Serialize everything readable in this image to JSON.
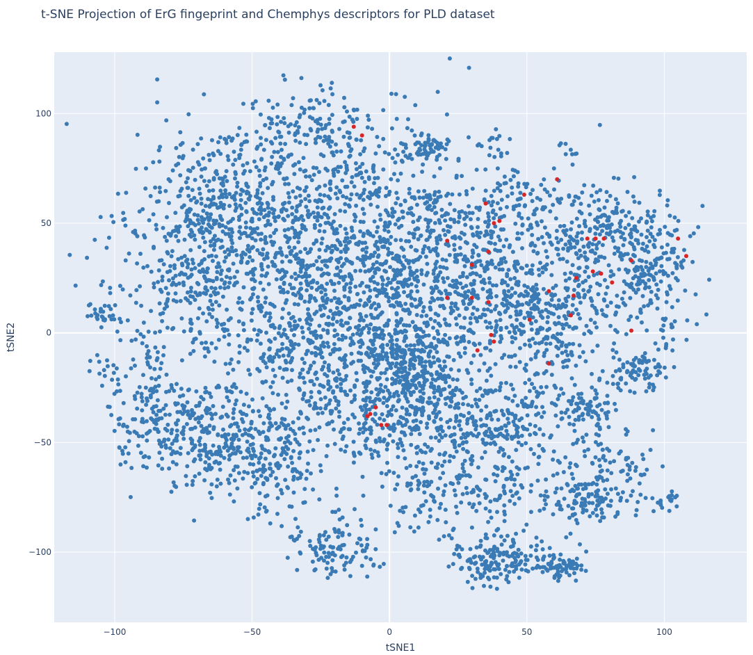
{
  "chart_data": {
    "type": "scatter",
    "title": "t-SNE Projection of ErG fingeprint and Chemphys descriptors for PLD dataset",
    "xlabel": "tSNE1",
    "ylabel": "tSNE2",
    "xlim": [
      -122,
      130
    ],
    "ylim": [
      -132,
      128
    ],
    "x_ticks": [
      -100,
      -50,
      0,
      50,
      100
    ],
    "y_ticks": [
      -100,
      -50,
      0,
      50,
      100
    ],
    "x_tick_labels": [
      "−100",
      "−50",
      "0",
      "50",
      "100"
    ],
    "y_tick_labels": [
      "−100",
      "−50",
      "0",
      "50",
      "100"
    ],
    "grid": true,
    "legend": "none",
    "colors": {
      "plot_bg": "#e5ecf6",
      "grid": "#ffffff",
      "series_blue": "#3a7ab5",
      "series_red": "#d62728"
    },
    "series": [
      {
        "color": "#3a7ab5",
        "clusters": [
          {
            "cx": -38,
            "cy": 40,
            "sx": 27,
            "sy": 29,
            "n": 900
          },
          {
            "cx": -8,
            "cy": 35,
            "sx": 17,
            "sy": 35,
            "n": 450
          },
          {
            "cx": -28,
            "cy": 92,
            "sx": 14,
            "sy": 10,
            "n": 120
          },
          {
            "cx": -62,
            "cy": 57,
            "sx": 14,
            "sy": 16,
            "n": 200
          },
          {
            "cx": -68,
            "cy": 22,
            "sx": 12,
            "sy": 16,
            "n": 160
          },
          {
            "cx": 3,
            "cy": 25,
            "sx": 10,
            "sy": 16,
            "n": 200
          },
          {
            "cx": 14,
            "cy": 85,
            "sx": 4,
            "sy": 3,
            "n": 60
          },
          {
            "cx": 14,
            "cy": 60,
            "sx": 4,
            "sy": 3,
            "n": 25
          },
          {
            "cx": 8,
            "cy": -14,
            "sx": 10,
            "sy": 9,
            "n": 280
          },
          {
            "cx": -73,
            "cy": -45,
            "sx": 13,
            "sy": 12,
            "n": 250
          },
          {
            "cx": -90,
            "cy": -25,
            "sx": 6,
            "sy": 14,
            "n": 80
          },
          {
            "cx": -50,
            "cy": -48,
            "sx": 12,
            "sy": 14,
            "n": 220
          },
          {
            "cx": -42,
            "cy": -65,
            "sx": 10,
            "sy": 10,
            "n": 80
          },
          {
            "cx": -22,
            "cy": -10,
            "sx": 11,
            "sy": 15,
            "n": 150
          },
          {
            "cx": -40,
            "cy": -5,
            "sx": 9,
            "sy": 12,
            "n": 80
          },
          {
            "cx": -103,
            "cy": 8,
            "sx": 3,
            "sy": 2.5,
            "n": 25
          },
          {
            "cx": -104,
            "cy": -15,
            "sx": 3,
            "sy": 5,
            "n": 12
          },
          {
            "cx": -18,
            "cy": -98,
            "sx": 9,
            "sy": 7,
            "n": 110
          },
          {
            "cx": 39,
            "cy": -102,
            "sx": 9,
            "sy": 6,
            "n": 170
          },
          {
            "cx": 62,
            "cy": -107,
            "sx": 4,
            "sy": 3,
            "n": 70
          },
          {
            "cx": 15,
            "cy": -70,
            "sx": 11,
            "sy": 11,
            "n": 110
          },
          {
            "cx": 40,
            "cy": -70,
            "sx": 10,
            "sy": 9,
            "n": 90
          },
          {
            "cx": 22,
            "cy": -35,
            "sx": 9,
            "sy": 12,
            "n": 180
          },
          {
            "cx": 45,
            "cy": -40,
            "sx": 10,
            "sy": 12,
            "n": 180
          },
          {
            "cx": 0,
            "cy": -40,
            "sx": 8,
            "sy": 10,
            "n": 120
          },
          {
            "cx": -20,
            "cy": -35,
            "sx": 8,
            "sy": 10,
            "n": 80
          },
          {
            "cx": 72,
            "cy": -75,
            "sx": 7,
            "sy": 6,
            "n": 110
          },
          {
            "cx": 78,
            "cy": -58,
            "sx": 9,
            "sy": 10,
            "n": 60
          },
          {
            "cx": 72,
            "cy": -35,
            "sx": 5,
            "sy": 5,
            "n": 80
          },
          {
            "cx": 58,
            "cy": -5,
            "sx": 8,
            "sy": 10,
            "n": 110
          },
          {
            "cx": 90,
            "cy": -18,
            "sx": 6,
            "sy": 5,
            "n": 80
          },
          {
            "cx": 38,
            "cy": 15,
            "sx": 12,
            "sy": 12,
            "n": 250
          },
          {
            "cx": 30,
            "cy": 40,
            "sx": 10,
            "sy": 15,
            "n": 160
          },
          {
            "cx": 45,
            "cy": 62,
            "sx": 10,
            "sy": 10,
            "n": 80
          },
          {
            "cx": 38,
            "cy": 87,
            "sx": 3,
            "sy": 3,
            "n": 15
          },
          {
            "cx": 65,
            "cy": 30,
            "sx": 13,
            "sy": 18,
            "n": 280
          },
          {
            "cx": 95,
            "cy": 30,
            "sx": 9,
            "sy": 14,
            "n": 200
          },
          {
            "cx": 80,
            "cy": 50,
            "sx": 11,
            "sy": 10,
            "n": 100
          },
          {
            "cx": 65,
            "cy": 85,
            "sx": 2,
            "sy": 2,
            "n": 8
          },
          {
            "cx": 100,
            "cy": -77,
            "sx": 3,
            "sy": 3,
            "n": 20
          },
          {
            "cx": 90,
            "cy": -65,
            "sx": 5,
            "sy": 8,
            "n": 20
          },
          {
            "cx": 102,
            "cy": -3,
            "sx": 3,
            "sy": 4,
            "n": 12
          }
        ]
      },
      {
        "color": "#d62728",
        "points": [
          [
            -13,
            94
          ],
          [
            -10,
            90
          ],
          [
            21,
            42
          ],
          [
            30,
            31
          ],
          [
            36,
            37
          ],
          [
            35,
            59
          ],
          [
            38,
            50
          ],
          [
            40,
            51
          ],
          [
            49,
            63
          ],
          [
            61,
            70
          ],
          [
            21,
            16
          ],
          [
            30,
            16
          ],
          [
            36,
            14
          ],
          [
            58,
            19
          ],
          [
            67,
            17
          ],
          [
            72,
            43
          ],
          [
            75,
            43
          ],
          [
            78,
            43
          ],
          [
            74,
            28
          ],
          [
            77,
            27
          ],
          [
            68,
            25
          ],
          [
            81,
            23
          ],
          [
            66,
            8
          ],
          [
            88,
            33
          ],
          [
            88,
            1
          ],
          [
            105,
            43
          ],
          [
            108,
            35
          ],
          [
            51,
            6
          ],
          [
            37,
            -1
          ],
          [
            38,
            -4
          ],
          [
            32,
            -8
          ],
          [
            58,
            -14
          ],
          [
            -8,
            -38
          ],
          [
            -7,
            -37
          ],
          [
            -5,
            -34
          ],
          [
            -3,
            -42
          ],
          [
            -1,
            -42
          ]
        ]
      }
    ]
  }
}
